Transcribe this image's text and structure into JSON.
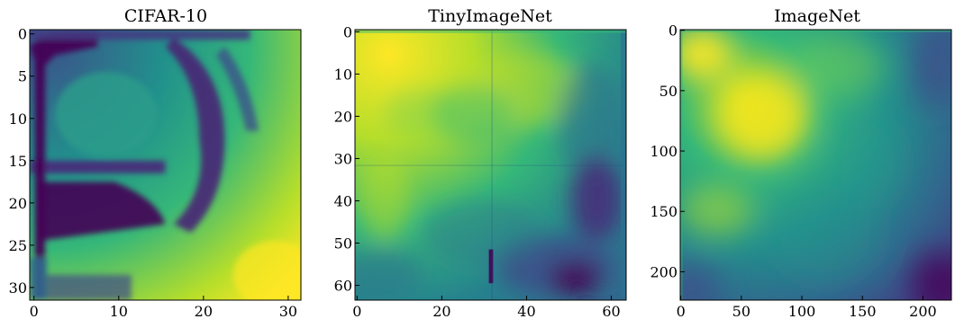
{
  "chart_data": [
    {
      "type": "heatmap",
      "title": "CIFAR-10",
      "colormap": "viridis",
      "size": 32,
      "x_ticks": [
        "0",
        "10",
        "20",
        "30"
      ],
      "x_tick_values": [
        0,
        10,
        20,
        30
      ],
      "y_ticks": [
        "0",
        "5",
        "10",
        "15",
        "20",
        "25",
        "30"
      ],
      "y_tick_values": [
        0,
        5,
        10,
        15,
        20,
        25,
        30
      ],
      "grid": false
    },
    {
      "type": "heatmap",
      "title": "TinyImageNet",
      "colormap": "viridis",
      "size": 64,
      "x_ticks": [
        "0",
        "20",
        "40",
        "60"
      ],
      "x_tick_values": [
        0,
        20,
        40,
        60
      ],
      "y_ticks": [
        "0",
        "10",
        "20",
        "30",
        "40",
        "50",
        "60"
      ],
      "y_tick_values": [
        0,
        10,
        20,
        30,
        40,
        50,
        60
      ],
      "grid": false
    },
    {
      "type": "heatmap",
      "title": "ImageNet",
      "colormap": "viridis",
      "size": 224,
      "x_ticks": [
        "0",
        "50",
        "100",
        "150",
        "200"
      ],
      "x_tick_values": [
        0,
        50,
        100,
        150,
        200
      ],
      "y_ticks": [
        "0",
        "50",
        "100",
        "150",
        "200"
      ],
      "y_tick_values": [
        0,
        50,
        100,
        150,
        200
      ],
      "grid": false
    }
  ]
}
